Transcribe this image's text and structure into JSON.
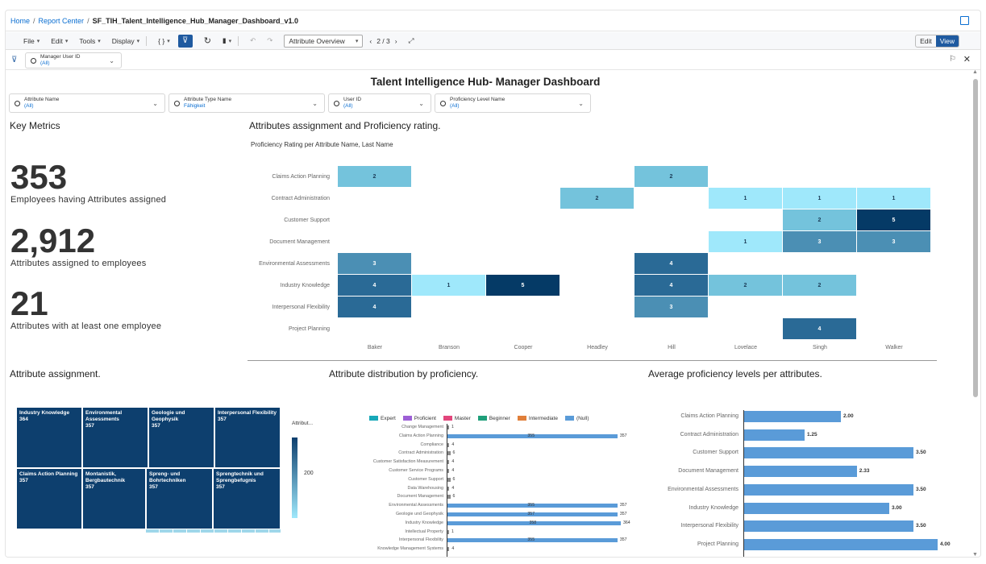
{
  "breadcrumb": {
    "home": "Home",
    "sep": "/",
    "report_center": "Report Center",
    "current": "SF_TIH_Talent_Intelligence_Hub_Manager_Dashboard_v1.0"
  },
  "toolbar": {
    "file": "File",
    "edit": "Edit",
    "tools": "Tools",
    "display": "Display",
    "page_select": "Attribute Overview",
    "page_counter": "2 / 3",
    "edit_mode": "Edit",
    "view_mode": "View"
  },
  "control_filter": {
    "label": "Manager User ID",
    "value": "(All)"
  },
  "dashboard_title": "Talent Intelligence Hub- Manager Dashboard",
  "filters": [
    {
      "label": "Attribute Name",
      "value": "(All)"
    },
    {
      "label": "Attribute Type Name",
      "value": "Fähigkeit"
    },
    {
      "label": "User ID",
      "value": "(All)"
    },
    {
      "label": "Proficiency Level Name",
      "value": "(All)"
    }
  ],
  "key_metrics": {
    "title": "Key Metrics",
    "items": [
      {
        "value": "353",
        "label": "Employees having Attributes assigned"
      },
      {
        "value": "2,912",
        "label": "Attributes assigned to employees"
      },
      {
        "value": "21",
        "label": "Attributes with at least one employee"
      }
    ]
  },
  "heatmap_section": {
    "title": "Attributes assignment and Proficiency rating.",
    "subtitle": "Proficiency Rating per Attribute Name, Last Name"
  },
  "chart_data": [
    {
      "type": "heatmap",
      "title": "Proficiency Rating per Attribute Name, Last Name",
      "rows": [
        "Claims Action Planning",
        "Contract Administration",
        "Customer Support",
        "Document Management",
        "Environmental Assessments",
        "Industry Knowledge",
        "Interpersonal Flexibility",
        "Project Planning"
      ],
      "columns": [
        "Baker",
        "Branson",
        "Cooper",
        "Headley",
        "Hill",
        "Lovelace",
        "Singh",
        "Walker"
      ],
      "values": [
        [
          2,
          null,
          null,
          null,
          2,
          null,
          null,
          null
        ],
        [
          null,
          null,
          null,
          2,
          null,
          1,
          1,
          1
        ],
        [
          null,
          null,
          null,
          null,
          null,
          null,
          2,
          5
        ],
        [
          null,
          null,
          null,
          null,
          null,
          1,
          3,
          3
        ],
        [
          3,
          null,
          null,
          null,
          4,
          null,
          null,
          null
        ],
        [
          4,
          1,
          5,
          null,
          4,
          2,
          2,
          null
        ],
        [
          4,
          null,
          null,
          null,
          3,
          null,
          null,
          null
        ],
        [
          null,
          null,
          null,
          null,
          null,
          null,
          4,
          null
        ]
      ],
      "colors": {
        "1": "#9fe8fb",
        "2": "#74c3dc",
        "3": "#4b8fb4",
        "4": "#2a6a96",
        "5": "#053a66"
      }
    },
    {
      "type": "treemap",
      "title": "Attribute assignment.",
      "items": [
        {
          "name": "Industry Knowledge",
          "value": 364
        },
        {
          "name": "Environmental Assessments",
          "value": 357
        },
        {
          "name": "Geologie und Geophysik",
          "value": 357
        },
        {
          "name": "Interpersonal Flexibility",
          "value": 357
        },
        {
          "name": "Claims Action Planning",
          "value": 357
        },
        {
          "name": "Montanistik, Bergbautechnik",
          "value": 357
        },
        {
          "name": "Spreng- und Bohrtechniken",
          "value": 357
        },
        {
          "name": "Sprengtechnik und Sprengbefugnis",
          "value": 357
        }
      ],
      "legend_title": "Attribut...",
      "legend_tick": "200",
      "color": "#0d3f6e"
    },
    {
      "type": "bar",
      "orientation": "horizontal",
      "stacked": true,
      "title": "Attribute distribution by proficiency.",
      "legend": [
        {
          "name": "Expert",
          "color": "#17a8b8"
        },
        {
          "name": "Proficient",
          "color": "#9d5fd6"
        },
        {
          "name": "Master",
          "color": "#e2467c"
        },
        {
          "name": "Beginner",
          "color": "#1f9f7a"
        },
        {
          "name": "Intermediate",
          "color": "#e07f3a"
        },
        {
          "name": "(Null)",
          "color": "#5a9bd8"
        }
      ],
      "categories": [
        "Change Management",
        "Claims Action Planning",
        "Compliance",
        "Contract Administration",
        "Customer Satisfaction Measurement",
        "Customer Service Programs",
        "Customer Support",
        "Data Warehousing",
        "Document Management",
        "Environmental Assessments",
        "Geologie und Geophysik",
        "Industry Knowledge",
        "Intellectual Property",
        "Interpersonal Flexibility",
        "Knowledge Management Systems"
      ],
      "totals": [
        1,
        357,
        4,
        6,
        4,
        4,
        6,
        4,
        6,
        357,
        357,
        364,
        1,
        357,
        4
      ],
      "null_labels": [
        "",
        "355",
        "",
        "",
        "",
        "",
        "",
        "",
        "",
        "355",
        "357",
        "358",
        "",
        "355",
        ""
      ],
      "xlim": [
        0,
        364
      ]
    },
    {
      "type": "bar",
      "orientation": "horizontal",
      "title": "Average proficiency levels per attributes.",
      "categories": [
        "Claims Action Planning",
        "Contract Administration",
        "Customer Support",
        "Document Management",
        "Environmental Assessments",
        "Industry Knowledge",
        "Interpersonal Flexibility",
        "Project Planning"
      ],
      "values": [
        2.0,
        1.25,
        3.5,
        2.33,
        3.5,
        3.0,
        3.5,
        4.0
      ],
      "labels": [
        "2.00",
        "1.25",
        "3.50",
        "2.33",
        "3.50",
        "3.00",
        "3.50",
        "4.00"
      ],
      "xlim": [
        0,
        4
      ],
      "color": "#5a9bd8"
    }
  ]
}
